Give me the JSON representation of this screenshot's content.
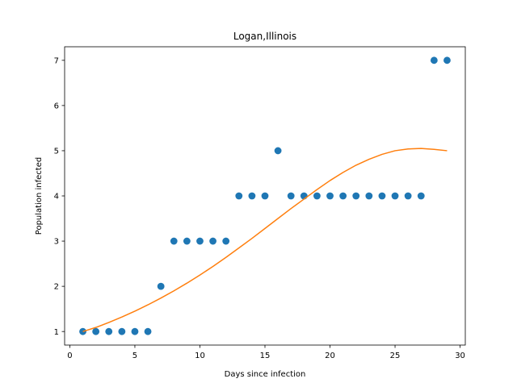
{
  "chart_data": {
    "type": "scatter",
    "title": "Logan,Illinois",
    "xlabel": "Days since infection",
    "ylabel": "Population infected",
    "xlim": [
      -0.4,
      30.4
    ],
    "ylim": [
      0.7,
      7.3
    ],
    "xticks": [
      0,
      5,
      10,
      15,
      20,
      25,
      30
    ],
    "yticks": [
      1,
      2,
      3,
      4,
      5,
      6,
      7
    ],
    "grid": false,
    "legend": "none",
    "series": [
      {
        "kind": "scatter",
        "color": "#1f77b4",
        "x": [
          1,
          2,
          3,
          4,
          5,
          6,
          7,
          8,
          9,
          10,
          11,
          12,
          13,
          14,
          15,
          16,
          17,
          18,
          19,
          20,
          21,
          22,
          23,
          24,
          25,
          26,
          27,
          28,
          29
        ],
        "y": [
          1,
          1,
          1,
          1,
          1,
          1,
          2,
          3,
          3,
          3,
          3,
          3,
          4,
          4,
          4,
          5,
          4,
          4,
          4,
          4,
          4,
          4,
          4,
          4,
          4,
          4,
          4,
          7,
          7
        ]
      },
      {
        "kind": "line",
        "color": "#ff7f0e",
        "x": [
          1,
          2,
          3,
          4,
          5,
          6,
          7,
          8,
          9,
          10,
          11,
          12,
          13,
          14,
          15,
          16,
          17,
          18,
          19,
          20,
          21,
          22,
          23,
          24,
          25,
          26,
          27,
          28,
          29
        ],
        "y": [
          1.0,
          1.09,
          1.2,
          1.32,
          1.45,
          1.59,
          1.74,
          1.9,
          2.07,
          2.25,
          2.44,
          2.64,
          2.85,
          3.06,
          3.28,
          3.5,
          3.72,
          3.93,
          4.14,
          4.34,
          4.52,
          4.68,
          4.81,
          4.92,
          5.0,
          5.04,
          5.05,
          5.03,
          5.0
        ]
      }
    ]
  }
}
